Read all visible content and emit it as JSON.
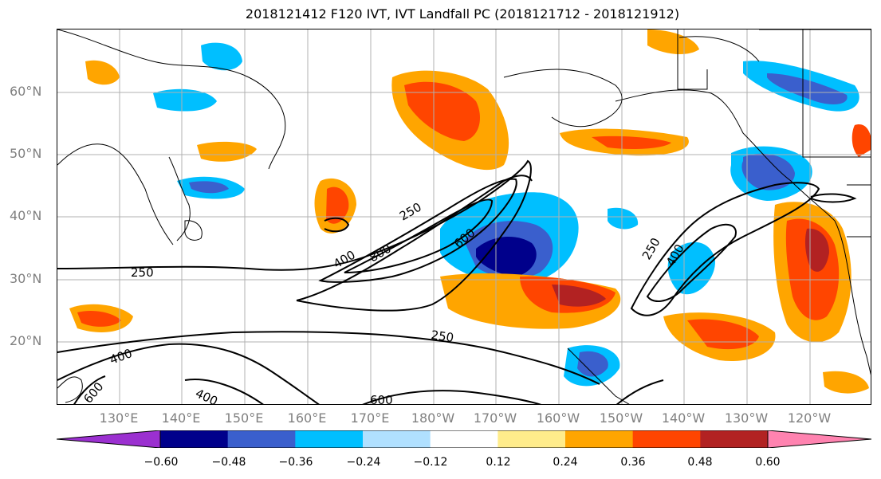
{
  "title": "2018121412 F120 IVT, IVT Landfall PC (2018121712 - 2018121912)",
  "lat_labels": [
    "60°N",
    "50°N",
    "40°N",
    "30°N",
    "20°N"
  ],
  "lon_labels": [
    "130°E",
    "140°E",
    "150°E",
    "160°E",
    "170°E",
    "180°W",
    "170°W",
    "160°W",
    "150°W",
    "140°W",
    "130°W",
    "120°W"
  ],
  "colorbar": {
    "ticks": [
      "−0.60",
      "−0.48",
      "−0.36",
      "−0.24",
      "−0.12",
      "0.12",
      "0.24",
      "0.36",
      "0.48",
      "0.60"
    ],
    "colors": [
      "#9b30d0",
      "#00008b",
      "#3a5fcd",
      "#00bfff",
      "#b0e0ff",
      "#ffffff",
      "#ffec8b",
      "#ffa500",
      "#ff4500",
      "#b22222",
      "#ff83b0"
    ]
  },
  "contour_labels": [
    "250",
    "400",
    "600",
    "250",
    "800",
    "400",
    "250",
    "400",
    "600",
    "250",
    "400",
    "600",
    "400",
    "250",
    "400",
    "600"
  ]
}
